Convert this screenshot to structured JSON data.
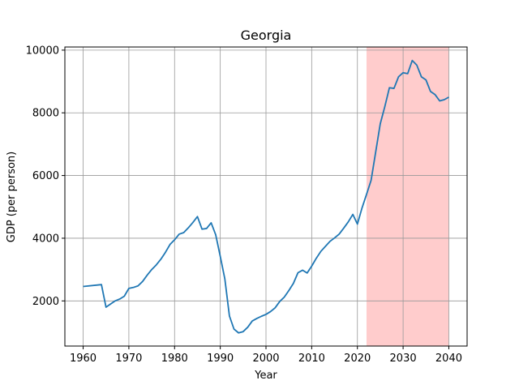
{
  "chart_data": {
    "type": "line",
    "title": "Georgia",
    "xlabel": "Year",
    "ylabel": "GDP (per person)",
    "xlim": [
      1956,
      2044
    ],
    "ylim": [
      560,
      10100
    ],
    "xticks": [
      1960,
      1970,
      1980,
      1990,
      2000,
      2010,
      2020,
      2030,
      2040
    ],
    "yticks": [
      2000,
      4000,
      6000,
      8000,
      10000
    ],
    "grid": true,
    "highlight_span": {
      "x_start": 2022,
      "x_end": 2040,
      "color": "#ffcccc"
    },
    "series": [
      {
        "color": "#1f77b4",
        "x": [
          1960,
          1964,
          1965,
          1966,
          1967,
          1968,
          1969,
          1970,
          1971,
          1972,
          1973,
          1974,
          1975,
          1976,
          1977,
          1978,
          1979,
          1980,
          1981,
          1982,
          1983,
          1984,
          1985,
          1986,
          1987,
          1988,
          1989,
          1990,
          1991,
          1992,
          1993,
          1994,
          1995,
          1996,
          1997,
          1998,
          1999,
          2000,
          2001,
          2002,
          2003,
          2004,
          2005,
          2006,
          2007,
          2008,
          2009,
          2010,
          2011,
          2012,
          2013,
          2014,
          2015,
          2016,
          2017,
          2018,
          2019,
          2020,
          2021,
          2022,
          2023,
          2024,
          2025,
          2026,
          2027,
          2028,
          2029,
          2030,
          2031,
          2032,
          2033,
          2034,
          2035,
          2036,
          2037,
          2038,
          2039,
          2040
        ],
        "y": [
          2460,
          2520,
          1800,
          1900,
          2000,
          2060,
          2150,
          2400,
          2430,
          2480,
          2620,
          2820,
          3000,
          3150,
          3330,
          3550,
          3800,
          3950,
          4130,
          4180,
          4330,
          4500,
          4690,
          4290,
          4310,
          4490,
          4110,
          3420,
          2700,
          1520,
          1100,
          980,
          1020,
          1160,
          1360,
          1440,
          1510,
          1570,
          1660,
          1780,
          1980,
          2120,
          2330,
          2560,
          2900,
          2980,
          2890,
          3110,
          3360,
          3580,
          3740,
          3900,
          4010,
          4130,
          4320,
          4520,
          4760,
          4450,
          4960,
          5400,
          5850,
          6750,
          7650,
          8200,
          8800,
          8780,
          9150,
          9280,
          9250,
          9670,
          9520,
          9150,
          9050,
          8680,
          8580,
          8380,
          8420,
          8500
        ]
      }
    ]
  }
}
